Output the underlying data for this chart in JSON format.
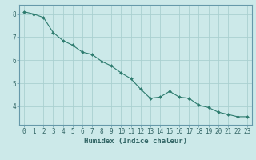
{
  "x": [
    0,
    1,
    2,
    3,
    4,
    5,
    6,
    7,
    8,
    9,
    10,
    11,
    12,
    13,
    14,
    15,
    16,
    17,
    18,
    19,
    20,
    21,
    22,
    23
  ],
  "y": [
    8.1,
    8.0,
    7.85,
    7.2,
    6.85,
    6.65,
    6.35,
    6.25,
    5.95,
    5.75,
    5.45,
    5.2,
    4.75,
    4.35,
    4.4,
    4.65,
    4.4,
    4.35,
    4.05,
    3.95,
    3.75,
    3.65,
    3.55,
    3.55
  ],
  "line_color": "#2d7b6e",
  "marker_color": "#2d7b6e",
  "bg_color": "#cce9e9",
  "grid_color": "#aad0d0",
  "axis_color": "#336666",
  "spine_color": "#6699aa",
  "xlabel": "Humidex (Indice chaleur)",
  "xlim": [
    -0.5,
    23.5
  ],
  "ylim": [
    3.2,
    8.4
  ],
  "yticks": [
    4,
    5,
    6,
    7,
    8
  ],
  "xticks": [
    0,
    1,
    2,
    3,
    4,
    5,
    6,
    7,
    8,
    9,
    10,
    11,
    12,
    13,
    14,
    15,
    16,
    17,
    18,
    19,
    20,
    21,
    22,
    23
  ],
  "tick_fontsize": 5.5,
  "label_fontsize": 6.5
}
